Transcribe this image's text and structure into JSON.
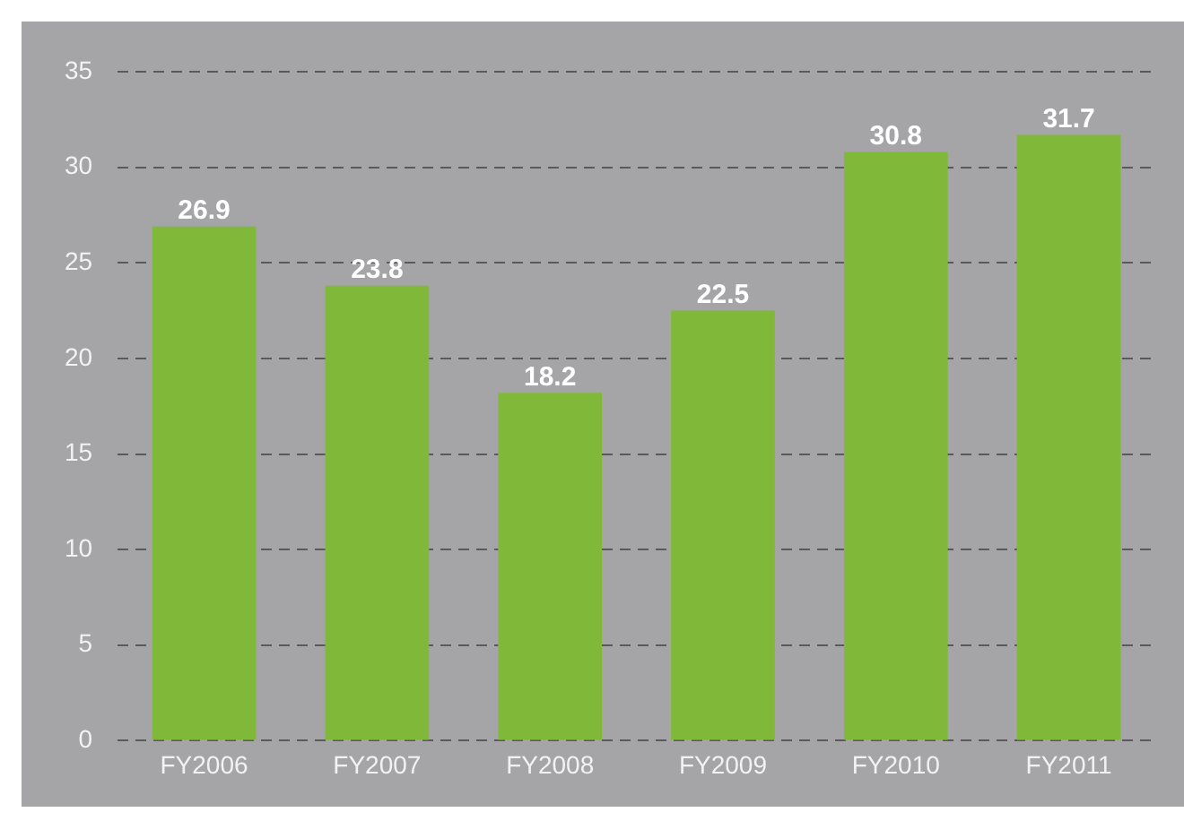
{
  "chart_data": {
    "type": "bar",
    "categories": [
      "FY2006",
      "FY2007",
      "FY2008",
      "FY2009",
      "FY2010",
      "FY2011"
    ],
    "values": [
      26.9,
      23.8,
      18.2,
      22.5,
      30.8,
      31.7
    ],
    "color": "#80b93a",
    "ylim": [
      0,
      35
    ],
    "yticks": [
      0,
      5,
      10,
      15,
      20,
      25,
      30,
      35
    ],
    "grid": "y",
    "data_labels": true,
    "legend": false
  }
}
